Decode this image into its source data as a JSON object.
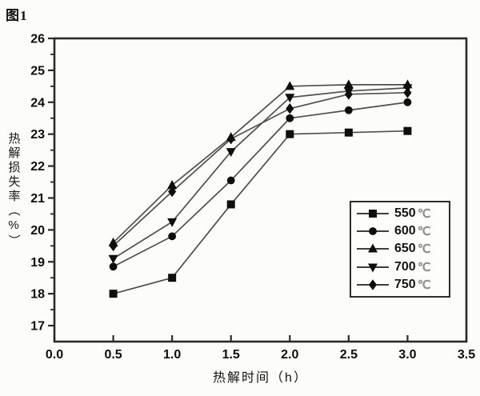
{
  "figure_label": "图1",
  "colors": {
    "background": "#fcfcfb",
    "axis": "#2a2a2a",
    "line": "#4f4f4f",
    "marker": "#0e0e0e",
    "tick_label": "#0d0d0d",
    "legend_border": "#2e2e2e",
    "legend_unit": "#8d8d8d"
  },
  "chart_data": {
    "type": "line",
    "title": "",
    "xlabel": "热解时间（h）",
    "ylabel": "热解损失率（%）",
    "xlim": [
      0.0,
      3.5
    ],
    "ylim": [
      16.5,
      26.0
    ],
    "x_tick_labels": [
      "0.0",
      "0.5",
      "1.0",
      "1.5",
      "2.0",
      "2.5",
      "3.0",
      "3.5"
    ],
    "y_ticks": [
      17,
      18,
      19,
      20,
      21,
      22,
      23,
      24,
      25,
      26
    ],
    "y_minor_ticks": [
      17.5,
      18.5,
      19.5,
      20.5,
      21.5,
      22.5,
      23.5,
      24.5,
      25.5
    ],
    "grid": false,
    "legend_position": "right-middle",
    "x": [
      0.5,
      1.0,
      1.5,
      2.0,
      2.5,
      3.0
    ],
    "series": [
      {
        "label": "550",
        "unit": "℃",
        "marker": "square",
        "values": [
          18.0,
          18.5,
          20.8,
          23.0,
          23.05,
          23.1
        ]
      },
      {
        "label": "600",
        "unit": "℃",
        "marker": "circle",
        "values": [
          18.85,
          19.8,
          21.55,
          23.5,
          23.75,
          24.0
        ]
      },
      {
        "label": "650",
        "unit": "℃",
        "marker": "triangle-up",
        "values": [
          19.6,
          21.4,
          22.9,
          24.5,
          24.55,
          24.55
        ]
      },
      {
        "label": "700",
        "unit": "℃",
        "marker": "triangle-down",
        "values": [
          19.1,
          20.25,
          22.45,
          24.15,
          24.35,
          24.45
        ]
      },
      {
        "label": "750",
        "unit": "℃",
        "marker": "diamond",
        "values": [
          19.5,
          21.2,
          22.85,
          23.8,
          24.25,
          24.3
        ]
      }
    ]
  }
}
